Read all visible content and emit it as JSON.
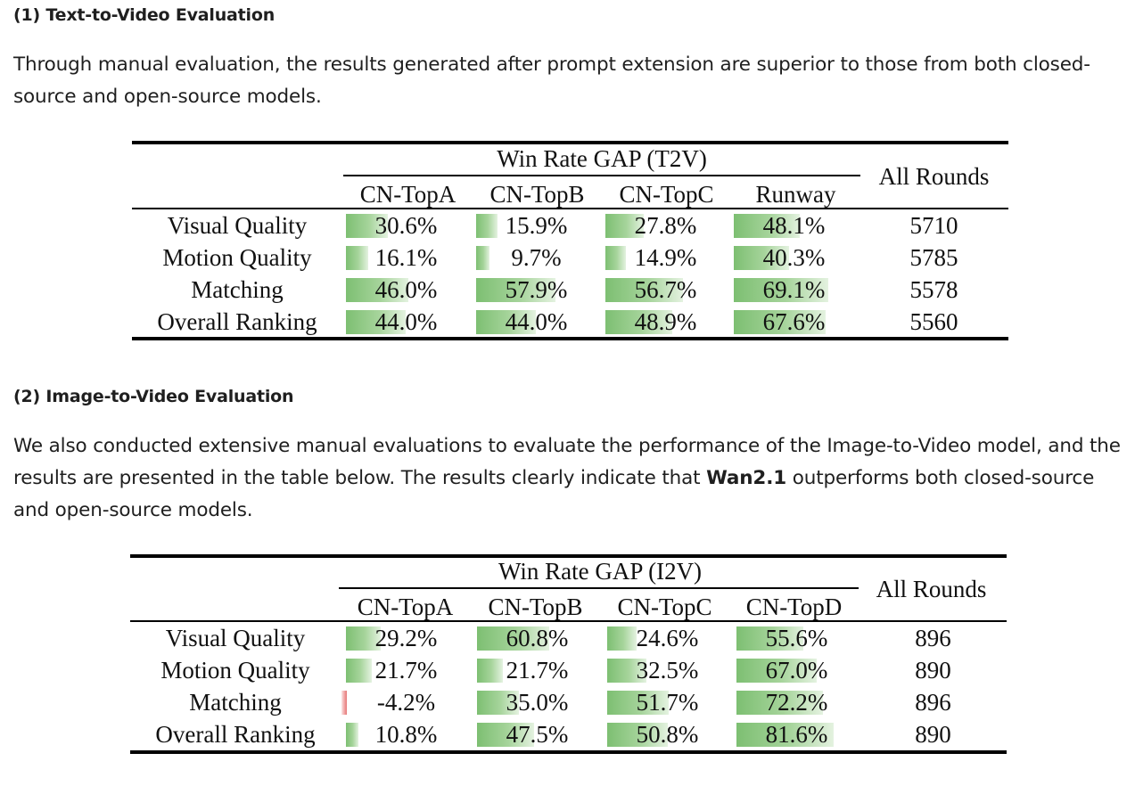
{
  "section1": {
    "heading": "(1) Text-to-Video Evaluation",
    "paragraph": "Through manual evaluation, the results generated after prompt extension are superior to those from both closed-source and open-source models."
  },
  "table1": {
    "group_header": "Win Rate GAP (T2V)",
    "all_rounds_header": "All Rounds",
    "columns": [
      "CN-TopA",
      "CN-TopB",
      "CN-TopC",
      "Runway"
    ],
    "rows": [
      {
        "label": "Visual Quality",
        "values": [
          "30.6%",
          "15.9%",
          "27.8%",
          "48.1%"
        ],
        "nums": [
          30.6,
          15.9,
          27.8,
          48.1
        ],
        "rounds": "5710"
      },
      {
        "label": "Motion Quality",
        "values": [
          "16.1%",
          "9.7%",
          "14.9%",
          "40.3%"
        ],
        "nums": [
          16.1,
          9.7,
          14.9,
          40.3
        ],
        "rounds": "5785"
      },
      {
        "label": "Matching",
        "values": [
          "46.0%",
          "57.9%",
          "56.7%",
          "69.1%"
        ],
        "nums": [
          46.0,
          57.9,
          56.7,
          69.1
        ],
        "rounds": "5578"
      },
      {
        "label": "Overall Ranking",
        "values": [
          "44.0%",
          "44.0%",
          "48.9%",
          "67.6%"
        ],
        "nums": [
          44.0,
          44.0,
          48.9,
          67.6
        ],
        "rounds": "5560"
      }
    ]
  },
  "section2": {
    "heading": "(2) Image-to-Video Evaluation",
    "paragraph_before": "We also conducted extensive manual evaluations to evaluate the performance of the Image-to-Video model, and the results are presented in the table below. The results clearly indicate that ",
    "paragraph_bold": "Wan2.1",
    "paragraph_after": " outperforms both closed-source and open-source models."
  },
  "table2": {
    "group_header": "Win Rate GAP (I2V)",
    "all_rounds_header": "All Rounds",
    "columns": [
      "CN-TopA",
      "CN-TopB",
      "CN-TopC",
      "CN-TopD"
    ],
    "rows": [
      {
        "label": "Visual Quality",
        "values": [
          "29.2%",
          "60.8%",
          "24.6%",
          "55.6%"
        ],
        "nums": [
          29.2,
          60.8,
          24.6,
          55.6
        ],
        "rounds": "896"
      },
      {
        "label": "Motion Quality",
        "values": [
          "21.7%",
          "21.7%",
          "32.5%",
          "67.0%"
        ],
        "nums": [
          21.7,
          21.7,
          32.5,
          67.0
        ],
        "rounds": "890"
      },
      {
        "label": "Matching",
        "values": [
          "-4.2%",
          "35.0%",
          "51.7%",
          "72.2%"
        ],
        "nums": [
          -4.2,
          35.0,
          51.7,
          72.2
        ],
        "rounds": "896"
      },
      {
        "label": "Overall Ranking",
        "values": [
          "10.8%",
          "47.5%",
          "50.8%",
          "81.6%"
        ],
        "nums": [
          10.8,
          47.5,
          50.8,
          81.6
        ],
        "rounds": "890"
      }
    ]
  }
}
